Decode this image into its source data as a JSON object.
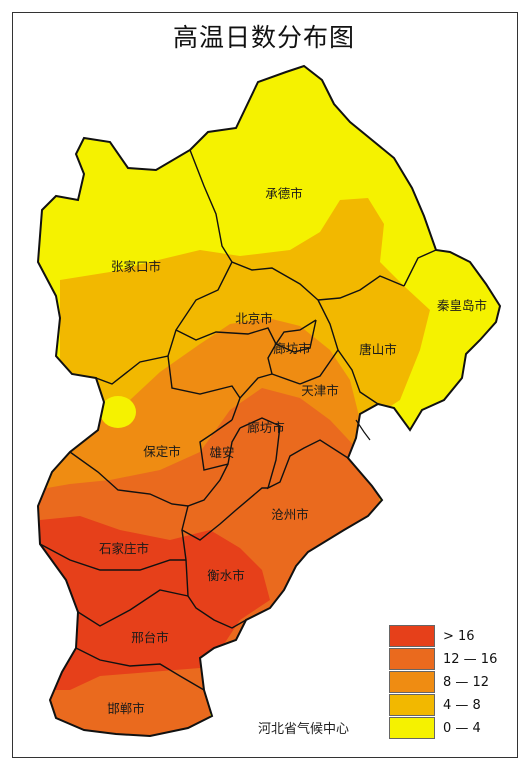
{
  "title": "高温日数分布图",
  "credit": "河北省气候中心",
  "colors": {
    "c0_4": "#f5f200",
    "c4_8": "#f2b800",
    "c8_12": "#ef8c12",
    "c12_16": "#ea6a1e",
    "c16": "#e6401a",
    "border": "#111111"
  },
  "cities": {
    "chengde": "承德市",
    "zhangjiakou": "张家口市",
    "qinhuangdao": "秦皇岛市",
    "beijing": "北京市",
    "langfang_north": "廊坊市",
    "tangshan": "唐山市",
    "tianjin": "天津市",
    "langfang": "廊坊市",
    "baoding": "保定市",
    "xiongan": "雄安",
    "cangzhou": "沧州市",
    "shijiazhuang": "石家庄市",
    "hengshui": "衡水市",
    "xingtai": "邢台市",
    "handan": "邯郸市"
  },
  "legend": [
    {
      "label": "> 16",
      "color": "#e6401a"
    },
    {
      "label": "12 — 16",
      "color": "#ea6a1e"
    },
    {
      "label": "8 — 12",
      "color": "#ef8c12"
    },
    {
      "label": "4 — 8",
      "color": "#f2b800"
    },
    {
      "label": "0 — 4",
      "color": "#f5f200"
    }
  ]
}
